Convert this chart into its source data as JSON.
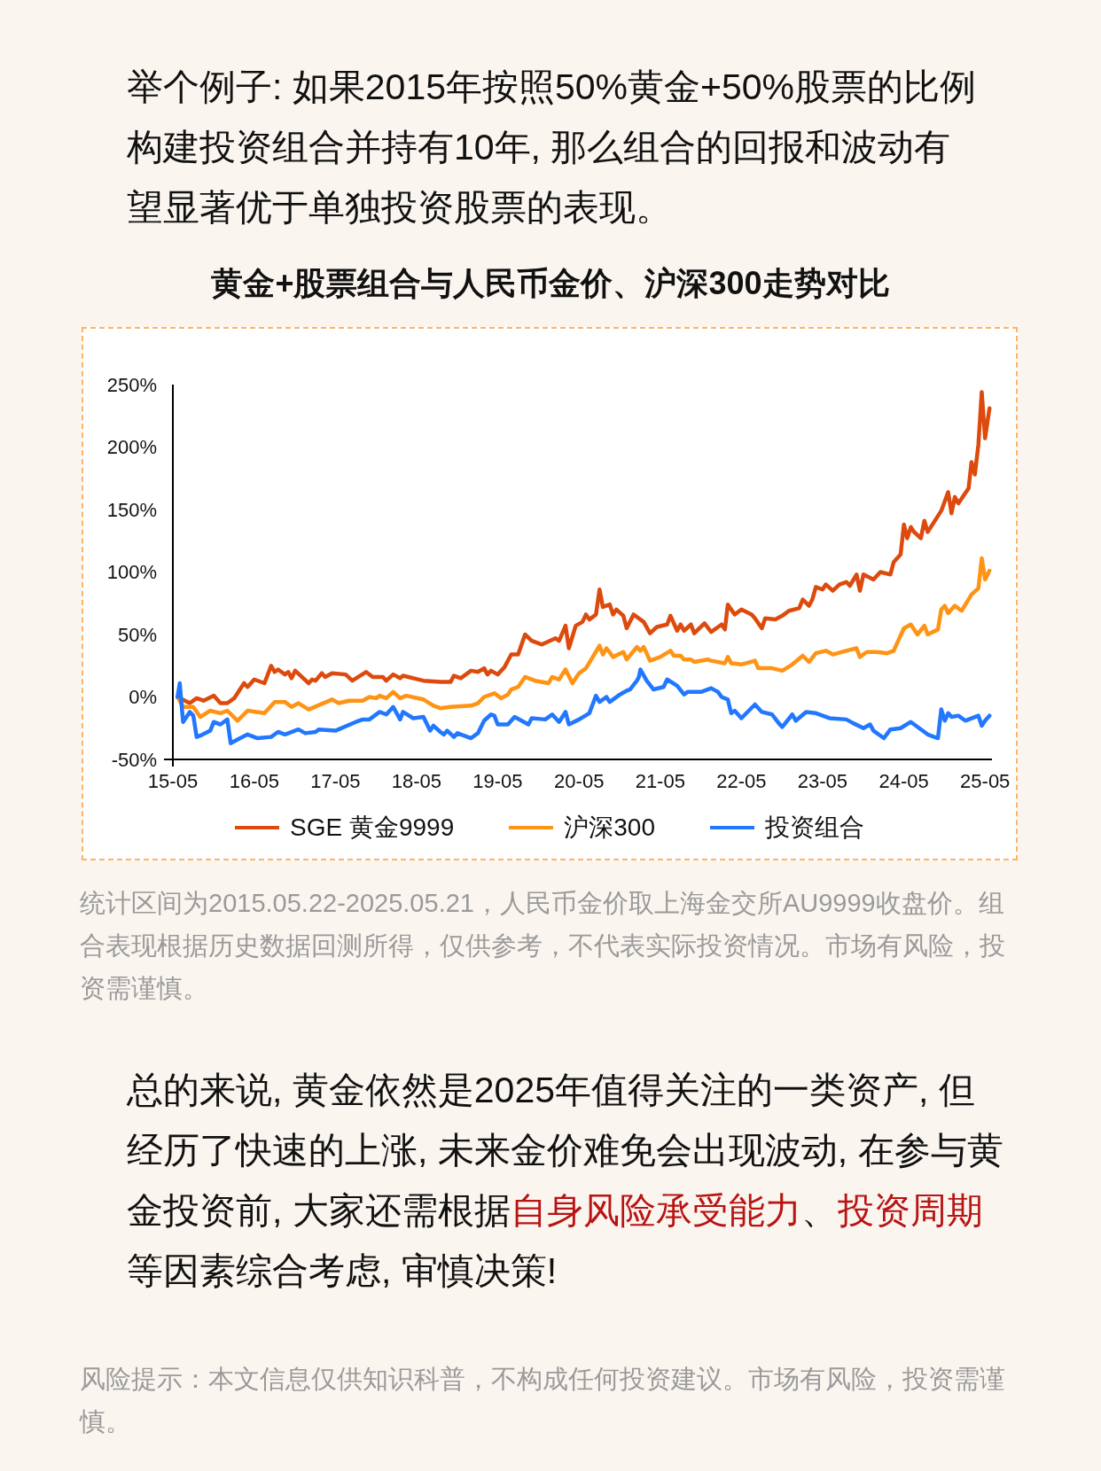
{
  "chart_data": {
    "type": "line",
    "title": "黄金+股票组合与人民币金价、沪深300走势对比",
    "annotations": [
      "举个例子: 如果2015年按照50%黄金+50%股票的比例构建投资组合并持有10年, 那么组合的回报和波动有望显著优于单独投资股票的表现。",
      "统计区间为2015.05.22-2025.05.21，人民币金价取上海金交所AU9999收盘价。组合表现根据历史数据回测所得，仅供参考，不代表实际投资情况。市场有风险，投资需谨慎。",
      "总的来说, 黄金依然是2025年值得关注的一类资产, 但经历了快速的上涨, 未来金价难免会出现波动, 在参与黄金投资前, 大家还需根据",
      "自身风险承受能力",
      "、",
      "投资周期",
      "等因素综合考虑, 审慎决策!",
      "风险提示：本文信息仅供知识科普，不构成任何投资建议。市场有风险，投资需谨慎。"
    ],
    "ylim": [
      -50,
      250
    ],
    "yticks": [
      {
        "value": -50,
        "label": "-50%"
      },
      {
        "value": 0,
        "label": "0%"
      },
      {
        "value": 50,
        "label": "50%"
      },
      {
        "value": 100,
        "label": "100%"
      },
      {
        "value": 150,
        "label": "150%"
      },
      {
        "value": 200,
        "label": "200%"
      },
      {
        "value": 250,
        "label": "250%"
      }
    ],
    "xlim": [
      "2015-05",
      "2025-06"
    ],
    "xticks": [
      {
        "value": "2015-05",
        "label": "15-05"
      },
      {
        "value": "2016-05",
        "label": "16-05"
      },
      {
        "value": "2017-05",
        "label": "17-05"
      },
      {
        "value": "2018-05",
        "label": "18-05"
      },
      {
        "value": "2019-05",
        "label": "19-05"
      },
      {
        "value": "2020-05",
        "label": "20-05"
      },
      {
        "value": "2021-05",
        "label": "21-05"
      },
      {
        "value": "2022-05",
        "label": "22-05"
      },
      {
        "value": "2023-05",
        "label": "23-05"
      },
      {
        "value": "2024-05",
        "label": "24-05"
      },
      {
        "value": "2025-05",
        "label": "25-05"
      }
    ],
    "grid": false,
    "legend": "bottom",
    "marker": "none",
    "line_style": "solid",
    "series": [
      {
        "name": "SGE 黄金9999",
        "color": "#dd4a0e",
        "x": [
          "2015-05-22",
          "2015-07-16",
          "2015-08-16",
          "2015-09-16",
          "2015-11-01",
          "2015-12-01",
          "2016-01-01",
          "2016-02-01",
          "2016-03-16",
          "2016-04-01",
          "2016-05-01",
          "2016-06-16",
          "2016-07-16",
          "2016-08-01",
          "2016-08-16",
          "2016-09-16",
          "2016-10-01",
          "2016-10-16",
          "2016-11-01",
          "2017-01-01",
          "2017-01-16",
          "2017-02-01",
          "2017-03-01",
          "2017-03-16",
          "2017-04-16",
          "2017-06-16",
          "2017-07-16",
          "2017-09-16",
          "2017-10-16",
          "2017-12-01",
          "2017-12-16",
          "2018-01-16",
          "2018-02-16",
          "2018-03-01",
          "2018-06-01",
          "2018-08-16",
          "2018-10-01",
          "2018-10-16",
          "2018-11-16",
          "2019-01-01",
          "2019-02-01",
          "2019-03-01",
          "2019-03-16",
          "2019-04-01",
          "2019-05-01",
          "2019-06-01",
          "2019-07-01",
          "2019-08-01",
          "2019-09-01",
          "2019-10-01",
          "2019-11-16",
          "2020-01-16",
          "2020-02-01",
          "2020-03-01",
          "2020-03-16",
          "2020-04-16",
          "2020-05-16",
          "2020-06-01",
          "2020-06-16",
          "2020-07-16",
          "2020-08-01",
          "2020-08-16",
          "2020-09-16",
          "2020-10-01",
          "2020-10-16",
          "2020-11-16",
          "2020-12-01",
          "2021-01-01",
          "2021-02-16",
          "2021-03-16",
          "2021-04-16",
          "2021-06-01",
          "2021-06-16",
          "2021-07-16",
          "2021-08-01",
          "2021-08-16",
          "2021-09-16",
          "2021-10-01",
          "2021-11-16",
          "2021-12-16",
          "2022-02-01",
          "2022-02-16",
          "2022-03-01",
          "2022-04-01",
          "2022-05-01",
          "2022-06-16",
          "2022-07-01",
          "2022-08-01",
          "2022-08-16",
          "2022-10-01",
          "2022-11-01",
          "2022-12-01",
          "2023-01-16",
          "2023-02-01",
          "2023-03-01",
          "2023-03-16",
          "2023-04-01",
          "2023-05-01",
          "2023-05-16",
          "2023-06-16",
          "2023-07-16",
          "2023-08-16",
          "2023-09-01",
          "2023-10-01",
          "2023-10-16",
          "2023-11-01",
          "2023-12-16",
          "2024-01-16",
          "2024-03-01",
          "2024-03-16",
          "2024-04-16",
          "2024-05-01",
          "2024-05-16",
          "2024-06-01",
          "2024-06-16",
          "2024-07-16",
          "2024-08-01",
          "2024-08-16",
          "2024-10-16",
          "2024-11-16",
          "2024-12-01",
          "2024-12-16",
          "2025-01-01",
          "2025-02-16",
          "2025-03-01",
          "2025-03-16",
          "2025-04-01",
          "2025-04-16",
          "2025-05-01",
          "2025-05-21"
        ],
        "values": [
          0,
          -5,
          -1,
          -3,
          1,
          -5,
          -5,
          -1,
          11,
          8,
          14,
          11,
          25,
          20,
          22,
          18,
          20,
          15,
          21,
          11,
          14,
          13,
          19,
          16,
          19,
          18,
          13,
          20,
          16,
          16,
          13,
          18,
          15,
          17,
          13,
          12,
          12,
          17,
          15,
          21,
          20,
          23,
          18,
          21,
          18,
          24,
          34,
          34,
          50,
          45,
          42,
          47,
          45,
          57,
          39,
          57,
          60,
          66,
          62,
          66,
          86,
          72,
          74,
          66,
          70,
          65,
          55,
          66,
          60,
          51,
          56,
          58,
          65,
          53,
          58,
          53,
          58,
          51,
          59,
          52,
          58,
          54,
          74,
          66,
          70,
          66,
          63,
          55,
          63,
          62,
          65,
          69,
          71,
          78,
          73,
          78,
          88,
          86,
          90,
          85,
          90,
          92,
          89,
          98,
          85,
          98,
          94,
          100,
          98,
          108,
          114,
          138,
          127,
          136,
          132,
          127,
          141,
          132,
          149,
          164,
          147,
          160,
          155,
          167,
          188,
          178,
          202,
          244,
          207,
          231
        ]
      },
      {
        "name": "沪深300",
        "color": "#ff9314",
        "x": [
          "2015-05-22",
          "2015-06-16",
          "2015-08-01",
          "2015-09-01",
          "2015-10-16",
          "2015-12-01",
          "2016-01-01",
          "2016-02-16",
          "2016-04-01",
          "2016-06-16",
          "2016-08-01",
          "2016-09-16",
          "2016-10-16",
          "2016-11-16",
          "2017-01-01",
          "2017-04-16",
          "2017-05-16",
          "2017-07-01",
          "2017-09-01",
          "2017-10-01",
          "2017-11-01",
          "2017-11-16",
          "2017-12-16",
          "2018-01-16",
          "2018-02-16",
          "2018-03-16",
          "2018-06-01",
          "2018-07-16",
          "2018-08-16",
          "2018-10-01",
          "2019-01-01",
          "2019-02-01",
          "2019-03-01",
          "2019-04-16",
          "2019-05-16",
          "2019-06-16",
          "2019-07-01",
          "2019-08-01",
          "2019-09-01",
          "2019-10-16",
          "2019-12-16",
          "2020-01-01",
          "2020-02-01",
          "2020-03-01",
          "2020-04-01",
          "2020-05-01",
          "2020-06-01",
          "2020-08-01",
          "2020-08-16",
          "2020-09-01",
          "2020-10-01",
          "2020-11-16",
          "2020-12-01",
          "2021-01-16",
          "2021-02-01",
          "2021-02-16",
          "2021-03-16",
          "2021-05-01",
          "2021-06-16",
          "2021-07-01",
          "2021-08-01",
          "2021-08-16",
          "2021-09-16",
          "2021-10-01",
          "2021-12-01",
          "2021-12-16",
          "2022-02-16",
          "2022-03-01",
          "2022-03-16",
          "2022-05-01",
          "2022-07-01",
          "2022-07-16",
          "2022-09-16",
          "2022-11-01",
          "2022-12-16",
          "2023-02-01",
          "2023-03-01",
          "2023-04-01",
          "2023-05-16",
          "2023-06-16",
          "2023-08-16",
          "2023-10-01",
          "2023-10-16",
          "2023-11-16",
          "2024-01-01",
          "2024-02-16",
          "2024-03-16",
          "2024-05-01",
          "2024-06-01",
          "2024-07-01",
          "2024-08-01",
          "2024-08-16",
          "2024-10-01",
          "2024-10-16",
          "2024-11-01",
          "2024-11-16",
          "2024-12-16",
          "2025-01-16",
          "2025-03-01",
          "2025-04-01",
          "2025-04-16",
          "2025-05-01",
          "2025-05-21"
        ],
        "values": [
          0,
          -8,
          -8,
          -16,
          -11,
          -13,
          -11,
          -19,
          -11,
          -13,
          -4,
          -4,
          -8,
          -5,
          -10,
          -2,
          -5,
          -3,
          -3,
          0,
          -1,
          1,
          -1,
          4,
          -1,
          1,
          -2,
          -7,
          -9,
          -8,
          -7,
          -5,
          0,
          3,
          -1,
          2,
          6,
          8,
          16,
          13,
          11,
          16,
          14,
          22,
          11,
          19,
          23,
          41,
          34,
          39,
          32,
          36,
          30,
          40,
          37,
          40,
          29,
          32,
          37,
          33,
          33,
          30,
          30,
          28,
          30,
          29,
          27,
          32,
          27,
          26,
          29,
          23,
          23,
          21,
          26,
          33,
          28,
          35,
          37,
          34,
          37,
          39,
          32,
          36,
          36,
          35,
          37,
          55,
          58,
          50,
          57,
          50,
          54,
          70,
          73,
          67,
          73,
          69,
          82,
          87,
          111,
          94,
          101
        ]
      },
      {
        "name": "投资组合",
        "color": "#2277ff",
        "x": [
          "2015-05-22",
          "2015-06-01",
          "2015-06-16",
          "2015-07-16",
          "2015-08-01",
          "2015-08-16",
          "2015-09-01",
          "2015-10-16",
          "2015-11-01",
          "2015-12-01",
          "2016-01-01",
          "2016-01-16",
          "2016-02-16",
          "2016-04-01",
          "2016-05-16",
          "2016-07-16",
          "2016-08-16",
          "2016-09-16",
          "2016-11-16",
          "2016-12-16",
          "2017-02-01",
          "2017-02-16",
          "2017-05-01",
          "2017-08-01",
          "2017-09-01",
          "2017-10-01",
          "2017-11-16",
          "2017-12-16",
          "2018-01-16",
          "2018-02-16",
          "2018-03-01",
          "2018-04-16",
          "2018-06-01",
          "2018-07-01",
          "2018-07-16",
          "2018-08-16",
          "2018-09-01",
          "2018-09-16",
          "2018-10-16",
          "2018-11-01",
          "2019-01-01",
          "2019-02-01",
          "2019-03-01",
          "2019-04-01",
          "2019-04-16",
          "2019-05-01",
          "2019-06-16",
          "2019-07-16",
          "2019-09-16",
          "2019-10-01",
          "2019-12-01",
          "2020-01-01",
          "2020-02-01",
          "2020-03-01",
          "2020-03-16",
          "2020-05-01",
          "2020-06-16",
          "2020-07-16",
          "2020-08-01",
          "2020-09-01",
          "2020-09-16",
          "2020-11-01",
          "2020-12-01",
          "2020-12-16",
          "2021-01-16",
          "2021-01-25",
          "2021-02-01",
          "2021-03-01",
          "2021-04-01",
          "2021-05-16",
          "2021-06-01",
          "2021-07-16",
          "2021-08-16",
          "2021-09-01",
          "2021-11-01",
          "2021-12-16",
          "2022-01-16",
          "2022-02-01",
          "2022-03-01",
          "2022-03-16",
          "2022-04-01",
          "2022-05-01",
          "2022-07-01",
          "2022-08-01",
          "2022-09-16",
          "2022-10-16",
          "2022-11-01",
          "2022-12-16",
          "2023-01-01",
          "2023-02-16",
          "2023-04-01",
          "2023-06-01",
          "2023-08-16",
          "2023-09-16",
          "2023-11-01",
          "2023-12-01",
          "2023-12-16",
          "2024-02-01",
          "2024-03-01",
          "2024-04-16",
          "2024-06-01",
          "2024-08-16",
          "2024-10-01",
          "2024-10-16",
          "2024-11-01",
          "2024-11-16",
          "2024-12-01",
          "2025-01-01",
          "2025-02-01",
          "2025-04-01",
          "2025-04-16",
          "2025-05-01",
          "2025-05-21"
        ],
        "values": [
          0,
          11,
          -20,
          -12,
          -15,
          -32,
          -31,
          -27,
          -20,
          -22,
          -18,
          -37,
          -34,
          -30,
          -33,
          -32,
          -28,
          -30,
          -26,
          -29,
          -28,
          -26,
          -27,
          -20,
          -18,
          -18,
          -12,
          -14,
          -8,
          -18,
          -12,
          -17,
          -16,
          -27,
          -23,
          -28,
          -30,
          -27,
          -32,
          -29,
          -33,
          -29,
          -19,
          -14,
          -15,
          -22,
          -22,
          -16,
          -22,
          -17,
          -18,
          -14,
          -20,
          -12,
          -22,
          -18,
          -13,
          1,
          -4,
          0,
          -4,
          2,
          5,
          6,
          13,
          16,
          22,
          13,
          6,
          8,
          14,
          9,
          2,
          4,
          4,
          7,
          4,
          0,
          -2,
          -13,
          -11,
          -17,
          -6,
          -12,
          -14,
          -21,
          -24,
          -14,
          -19,
          -12,
          -13,
          -17,
          -18,
          -21,
          -25,
          -22,
          -27,
          -33,
          -26,
          -25,
          -20,
          -30,
          -33,
          -10,
          -19,
          -13,
          -16,
          -15,
          -19,
          -15,
          -23,
          -19,
          -15
        ]
      }
    ]
  }
}
